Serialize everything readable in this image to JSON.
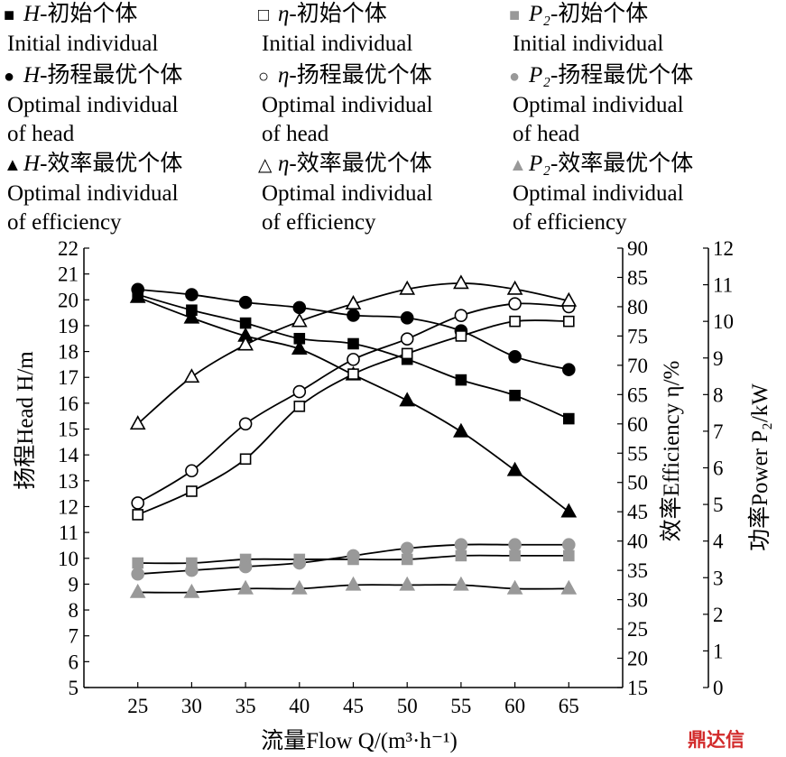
{
  "legend": {
    "col1": [
      {
        "symbol": "■",
        "prefix": "H",
        "zh": "-初始个体",
        "en1": "Initial individual",
        "en2": ""
      },
      {
        "symbol": "●",
        "prefix": "H",
        "zh": "-扬程最优个体",
        "en1": "Optimal individual",
        "en2": "of head"
      },
      {
        "symbol": "▲",
        "prefix": "H",
        "zh": "-效率最优个体",
        "en1": "Optimal individual",
        "en2": "of efficiency"
      }
    ],
    "col2": [
      {
        "symbol": "□",
        "prefix": "η",
        "zh": "-初始个体",
        "en1": "Initial individual",
        "en2": ""
      },
      {
        "symbol": "○",
        "prefix": "η",
        "zh": "-扬程最优个体",
        "en1": "Optimal individual",
        "en2": "of head"
      },
      {
        "symbol": "△",
        "prefix": "η",
        "zh": "-效率最优个体",
        "en1": "Optimal individual",
        "en2": "of efficiency"
      }
    ],
    "col3": [
      {
        "symbol": "■",
        "prefix": "P₂",
        "zh": "-初始个体",
        "en1": "Initial individual",
        "en2": ""
      },
      {
        "symbol": "●",
        "prefix": "P₂",
        "zh": "-扬程最优个体",
        "en1": "Optimal individual",
        "en2": "of head"
      },
      {
        "symbol": "▲",
        "prefix": "P₂",
        "zh": "-效率最优个体",
        "en1": "Optimal individual",
        "en2": "of efficiency"
      }
    ]
  },
  "watermark": "鼎达信",
  "chart_data": {
    "type": "line",
    "x": [
      25,
      30,
      35,
      40,
      45,
      50,
      55,
      60,
      65
    ],
    "xlabel": "流量Flow Q/(m³·h⁻¹)",
    "xlim": [
      20,
      70
    ],
    "xticks": [
      25,
      30,
      35,
      40,
      45,
      50,
      55,
      60,
      65
    ],
    "axes": {
      "left": {
        "label": "扬程Head H/m",
        "range": [
          5,
          22
        ],
        "step": 1
      },
      "right1": {
        "label": "效率Efficiency η/%",
        "range": [
          15,
          90
        ],
        "step": 5
      },
      "right2": {
        "label": "功率Power P₂/kW",
        "range": [
          0,
          12
        ],
        "step": 1
      }
    },
    "series": [
      {
        "name": "H-初始个体",
        "axis": "left",
        "marker": "square",
        "fill": "#000000",
        "stroke": "#000000",
        "values": [
          20.2,
          19.6,
          19.1,
          18.5,
          18.3,
          17.7,
          16.9,
          16.3,
          15.4
        ]
      },
      {
        "name": "H-扬程最优个体",
        "axis": "left",
        "marker": "circle",
        "fill": "#000000",
        "stroke": "#000000",
        "values": [
          20.4,
          20.2,
          19.9,
          19.7,
          19.4,
          19.3,
          18.8,
          17.8,
          17.3
        ]
      },
      {
        "name": "H-效率最优个体",
        "axis": "left",
        "marker": "triangle",
        "fill": "#000000",
        "stroke": "#000000",
        "values": [
          20.1,
          19.3,
          18.6,
          18.1,
          17.1,
          16.1,
          14.9,
          13.4,
          11.8
        ]
      },
      {
        "name": "η-初始个体",
        "axis": "right1",
        "marker": "square",
        "fill": "#ffffff",
        "stroke": "#000000",
        "values": [
          44.5,
          48.5,
          54,
          63,
          68.5,
          72,
          75,
          77.5,
          77.5
        ]
      },
      {
        "name": "η-扬程最优个体",
        "axis": "right1",
        "marker": "circle",
        "fill": "#ffffff",
        "stroke": "#000000",
        "values": [
          46.5,
          52,
          60,
          65.5,
          71,
          74.5,
          78.5,
          80.5,
          80
        ]
      },
      {
        "name": "η-效率最优个体",
        "axis": "right1",
        "marker": "triangle",
        "fill": "#ffffff",
        "stroke": "#000000",
        "values": [
          60,
          68,
          73.5,
          77.5,
          80.5,
          83,
          84,
          83,
          81
        ]
      },
      {
        "name": "P₂-初始个体",
        "axis": "right2",
        "marker": "square",
        "fill": "#999999",
        "stroke": "#999999",
        "values": [
          3.4,
          3.4,
          3.5,
          3.5,
          3.5,
          3.5,
          3.6,
          3.6,
          3.6
        ]
      },
      {
        "name": "P₂-扬程最优个体",
        "axis": "right2",
        "marker": "circle",
        "fill": "#999999",
        "stroke": "#999999",
        "values": [
          3.1,
          3.2,
          3.3,
          3.4,
          3.6,
          3.8,
          3.9,
          3.9,
          3.9
        ]
      },
      {
        "name": "P₂-效率最优个体",
        "axis": "right2",
        "marker": "triangle",
        "fill": "#999999",
        "stroke": "#999999",
        "values": [
          2.6,
          2.6,
          2.7,
          2.7,
          2.8,
          2.8,
          2.8,
          2.7,
          2.7
        ]
      }
    ]
  }
}
